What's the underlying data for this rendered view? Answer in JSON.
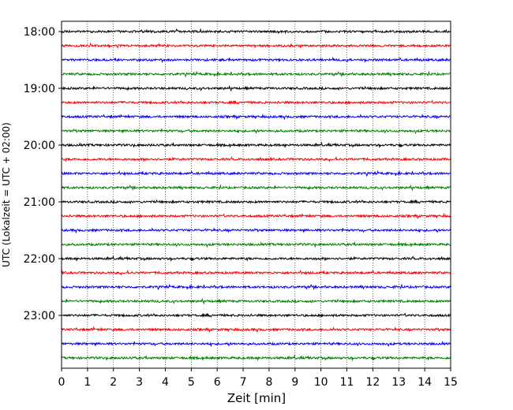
{
  "chart_data": {
    "type": "line",
    "subtype": "helicorder",
    "xlabel": "Zeit  [min]",
    "ylabel": "UTC (Lokalzeit = UTC + 02:00)",
    "xlim": [
      0,
      15
    ],
    "x_ticks": [
      0,
      1,
      2,
      3,
      4,
      5,
      6,
      7,
      8,
      9,
      10,
      11,
      12,
      13,
      14,
      15
    ],
    "y_ticks": [
      "18:00",
      "19:00",
      "20:00",
      "21:00",
      "22:00",
      "23:00"
    ],
    "trace_interval_min": 15,
    "trace_start": "18:00",
    "trace_count": 24,
    "trace_colors": [
      "#000000",
      "#ff0000",
      "#0000ff",
      "#008000"
    ],
    "grid": "vertical dotted at each minute"
  }
}
